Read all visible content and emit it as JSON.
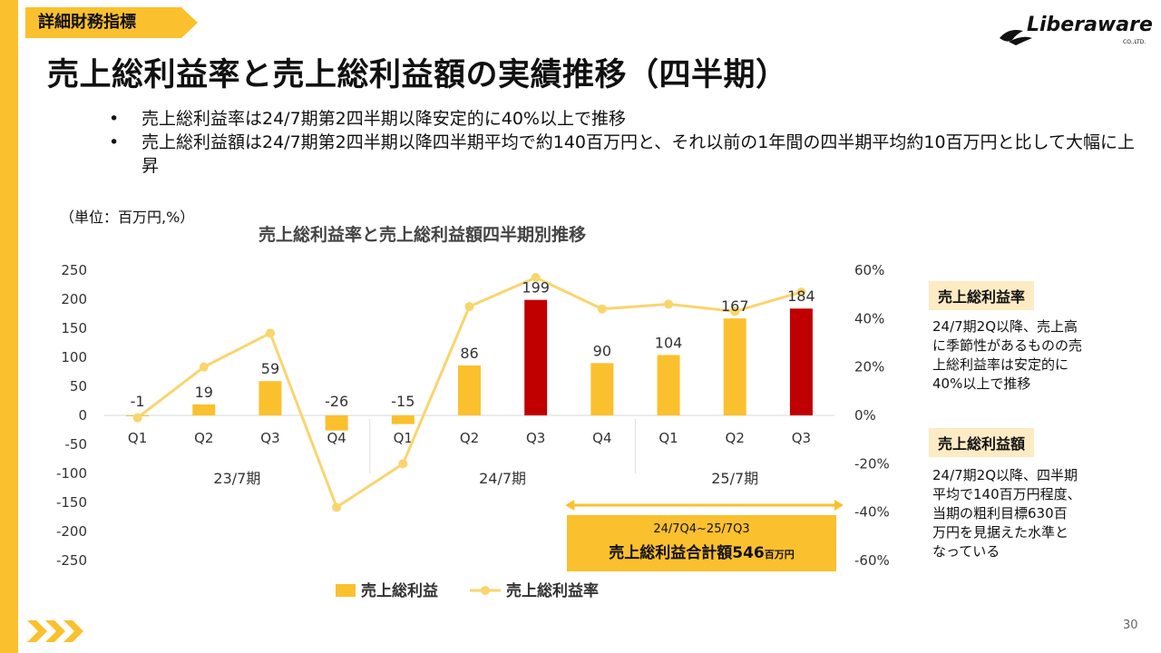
{
  "header": {
    "tag": "詳細財務指標",
    "title": "売上総利益率と売上総利益額の実績推移（四半期）",
    "logo_text": "Liberaware",
    "logo_sub": "CO.,LTD."
  },
  "bullets": [
    "売上総利益率は24/7期第2四半期以降安定的に40%以上で推移",
    "売上総利益額は24/7期第2四半期以降四半期平均で約140百万円と、それ以前の1年間の四半期平均約10百万円と比して大幅に上昇"
  ],
  "unit_note": "（単位：百万円,%）",
  "chart_data": {
    "type": "bar",
    "title": "売上総利益率と売上総利益額四半期別推移",
    "categories": [
      "Q1",
      "Q2",
      "Q3",
      "Q4",
      "Q1",
      "Q2",
      "Q3",
      "Q4",
      "Q1",
      "Q2",
      "Q3"
    ],
    "groups": [
      {
        "label": "23/7期",
        "start": 0,
        "end": 3
      },
      {
        "label": "24/7期",
        "start": 4,
        "end": 7
      },
      {
        "label": "25/7期",
        "start": 8,
        "end": 10
      }
    ],
    "series": [
      {
        "name": "売上総利益",
        "kind": "bar",
        "axis": "left",
        "values": [
          -1,
          19,
          59,
          -26,
          -15,
          86,
          199,
          90,
          104,
          167,
          184
        ],
        "data_labels": [
          "-1",
          "19",
          "59",
          "-26",
          "-15",
          "86",
          "199",
          "90",
          "104",
          "167",
          "184"
        ],
        "color": "#FBC02D",
        "highlight_color": "#C00000",
        "highlight_index": [
          6,
          10
        ]
      },
      {
        "name": "売上総利益率",
        "kind": "line",
        "axis": "right",
        "values": [
          -1,
          20,
          34,
          -38,
          -20,
          45,
          57,
          44,
          46,
          43,
          51
        ],
        "color": "#F9D56E"
      }
    ],
    "ylim_left": [
      -250,
      250
    ],
    "yticks_left": [
      "250",
      "200",
      "150",
      "100",
      "50",
      "0",
      "-50",
      "-100",
      "-150",
      "-200",
      "-250"
    ],
    "ylim_right": [
      -60,
      60
    ],
    "yticks_right": [
      "60%",
      "40%",
      "20%",
      "0%",
      "-20%",
      "-40%",
      "-60%"
    ],
    "legend": [
      "売上総利益",
      "売上総利益率"
    ],
    "legend_position": "bottom"
  },
  "callout": {
    "line1": "24/7Q4~25/7Q3",
    "line2": "売上総利益合計額546",
    "line2_unit": "百万円"
  },
  "side": {
    "rate_label": "売上総利益率",
    "rate_text": [
      "24/7期2Q以降、売上高",
      "に季節性があるものの売",
      "上総利益率は安定的に",
      "40%以上で推移"
    ],
    "amount_label": "売上総利益額",
    "amount_text": [
      "24/7期2Q以降、四半期",
      "平均で140百万円程度、",
      "当期の粗利目標630百",
      "万円を見据えた水準と",
      "なっている"
    ]
  },
  "page_number": "30",
  "colors": {
    "accent": "#FBC02D",
    "highlight": "#C00000",
    "line": "#F9D56E"
  }
}
